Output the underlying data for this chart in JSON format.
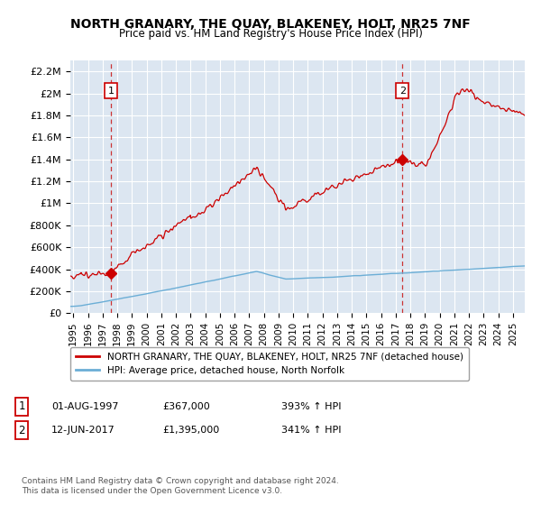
{
  "title": "NORTH GRANARY, THE QUAY, BLAKENEY, HOLT, NR25 7NF",
  "subtitle": "Price paid vs. HM Land Registry's House Price Index (HPI)",
  "ylabel_ticks": [
    "£0",
    "£200K",
    "£400K",
    "£600K",
    "£800K",
    "£1M",
    "£1.2M",
    "£1.4M",
    "£1.6M",
    "£1.8M",
    "£2M",
    "£2.2M"
  ],
  "ytick_values": [
    0,
    200000,
    400000,
    600000,
    800000,
    1000000,
    1200000,
    1400000,
    1600000,
    1800000,
    2000000,
    2200000
  ],
  "ylim": [
    0,
    2300000
  ],
  "xlim_start": 1994.8,
  "xlim_end": 2025.8,
  "background_color": "#dce6f1",
  "grid_color": "#ffffff",
  "line_color_hpi": "#6baed6",
  "line_color_price": "#cc0000",
  "marker1_date": 1997.583,
  "marker1_price": 367000,
  "marker1_label": "1",
  "marker2_date": 2017.45,
  "marker2_price": 1395000,
  "marker2_label": "2",
  "vline1_x": 1997.583,
  "vline2_x": 2017.45,
  "legend_line1": "NORTH GRANARY, THE QUAY, BLAKENEY, HOLT, NR25 7NF (detached house)",
  "legend_line2": "HPI: Average price, detached house, North Norfolk",
  "annotation1_box": "1",
  "annotation1_date": "01-AUG-1997",
  "annotation1_price": "£367,000",
  "annotation1_hpi": "393% ↑ HPI",
  "annotation2_box": "2",
  "annotation2_date": "12-JUN-2017",
  "annotation2_price": "£1,395,000",
  "annotation2_hpi": "341% ↑ HPI",
  "footer": "Contains HM Land Registry data © Crown copyright and database right 2024.\nThis data is licensed under the Open Government Licence v3.0.",
  "xtick_years": [
    1995,
    1996,
    1997,
    1998,
    1999,
    2000,
    2001,
    2002,
    2003,
    2004,
    2005,
    2006,
    2007,
    2008,
    2009,
    2010,
    2011,
    2012,
    2013,
    2014,
    2015,
    2016,
    2017,
    2018,
    2019,
    2020,
    2021,
    2022,
    2023,
    2024,
    2025
  ]
}
